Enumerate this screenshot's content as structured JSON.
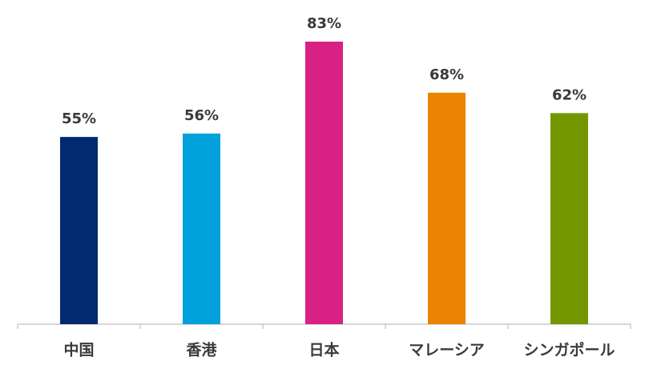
{
  "chart_data": {
    "type": "bar",
    "categories": [
      "中国",
      "香港",
      "日本",
      "マレーシア",
      "シンガポール"
    ],
    "values": [
      55,
      56,
      83,
      68,
      62
    ],
    "value_labels": [
      "55%",
      "56%",
      "83%",
      "68%",
      "62%"
    ],
    "colors": [
      "#012a70",
      "#01a1db",
      "#d82085",
      "#eb8300",
      "#749700"
    ]
  }
}
